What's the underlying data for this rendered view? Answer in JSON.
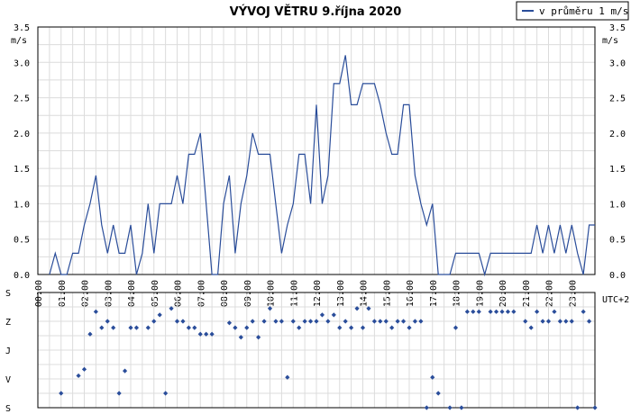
{
  "chart_data": [
    {
      "type": "line",
      "title": "VÝVOJ VĚTRU  9.října 2020",
      "ylabel": "m/s",
      "x_unit_label": "UTC+2",
      "ylim": [
        0,
        3.5
      ],
      "y_ticks": [
        "0.0",
        "0.5",
        "1.0",
        "1.5",
        "2.0",
        "2.5",
        "3.0",
        "3.5"
      ],
      "x_ticks": [
        "00:00",
        "01:00",
        "02:00",
        "03:00",
        "04:00",
        "05:00",
        "06:00",
        "07:00",
        "08:00",
        "09:00",
        "10:00",
        "11:00",
        "12:00",
        "13:00",
        "14:00",
        "15:00",
        "16:00",
        "17:00",
        "18:00",
        "19:00",
        "20:00",
        "21:00",
        "22:00",
        "23:00"
      ],
      "xlim_hours": [
        0,
        24
      ],
      "grid": true,
      "legend_position": "top-right",
      "series": [
        {
          "name": "v průměru 1 m/s",
          "color": "#2a4d9a",
          "x": [
            0.5,
            0.75,
            1.0,
            1.25,
            1.5,
            1.75,
            2.0,
            2.25,
            2.5,
            2.75,
            3.0,
            3.25,
            3.5,
            3.75,
            4.0,
            4.25,
            4.5,
            4.75,
            5.0,
            5.25,
            5.5,
            5.75,
            6.0,
            6.25,
            6.5,
            6.75,
            7.0,
            7.25,
            7.5,
            7.75,
            8.0,
            8.25,
            8.5,
            8.75,
            9.0,
            9.25,
            9.5,
            9.75,
            10.0,
            10.25,
            10.5,
            10.75,
            11.0,
            11.25,
            11.5,
            11.75,
            12.0,
            12.25,
            12.5,
            12.75,
            13.0,
            13.25,
            13.5,
            13.75,
            14.0,
            14.25,
            14.5,
            14.75,
            15.0,
            15.25,
            15.5,
            15.75,
            16.0,
            16.25,
            16.5,
            16.75,
            17.0,
            17.25,
            17.5,
            17.75,
            18.0,
            18.25,
            18.5,
            18.75,
            19.0,
            19.25,
            19.5,
            19.75,
            20.0,
            20.25,
            20.5,
            20.75,
            21.0,
            21.25,
            21.5,
            21.75,
            22.0,
            22.25,
            22.5,
            22.75,
            23.0,
            23.25,
            23.5,
            23.75,
            24.0
          ],
          "y": [
            0.0,
            0.3,
            0.0,
            0.0,
            0.3,
            0.3,
            0.7,
            1.0,
            1.4,
            0.7,
            0.3,
            0.7,
            0.3,
            0.3,
            0.7,
            0.0,
            0.3,
            1.0,
            0.3,
            1.0,
            1.0,
            1.0,
            1.4,
            1.0,
            1.7,
            1.7,
            2.0,
            1.0,
            0.0,
            0.0,
            1.0,
            1.4,
            0.3,
            1.0,
            1.4,
            2.0,
            1.7,
            1.7,
            1.7,
            1.0,
            0.3,
            0.7,
            1.0,
            1.7,
            1.7,
            1.0,
            2.4,
            1.0,
            1.4,
            2.7,
            2.7,
            3.1,
            2.4,
            2.4,
            2.7,
            2.7,
            2.7,
            2.4,
            2.0,
            1.7,
            1.7,
            2.4,
            2.4,
            1.4,
            1.0,
            0.7,
            1.0,
            0.0,
            0.0,
            0.0,
            0.3,
            0.3,
            0.3,
            0.3,
            0.3,
            0.0,
            0.3,
            0.3,
            0.3,
            0.3,
            0.3,
            0.3,
            0.3,
            0.3,
            0.7,
            0.3,
            0.7,
            0.3,
            0.7,
            0.3,
            0.7,
            0.3,
            0.0,
            0.7,
            0.7
          ]
        }
      ]
    },
    {
      "type": "scatter",
      "ylabel_categories": [
        "S",
        "V",
        "J",
        "Z",
        "S"
      ],
      "ylim": [
        0,
        360
      ],
      "y_note": "direction: S=0/360, V=90, J=180, Z=270",
      "xlim_hours": [
        0,
        24
      ],
      "grid": true,
      "series": [
        {
          "name": "",
          "color": "#2a4d9a",
          "x": [
            1.0,
            1.75,
            2.0,
            2.25,
            2.5,
            2.75,
            3.0,
            3.25,
            3.5,
            3.75,
            4.0,
            4.25,
            4.75,
            5.0,
            5.25,
            5.5,
            5.75,
            6.0,
            6.25,
            6.5,
            6.75,
            7.0,
            7.25,
            7.5,
            8.25,
            8.5,
            8.75,
            9.0,
            9.25,
            9.5,
            9.75,
            10.0,
            10.25,
            10.5,
            10.75,
            11.0,
            11.25,
            11.5,
            11.75,
            12.0,
            12.25,
            12.5,
            12.75,
            13.0,
            13.25,
            13.5,
            13.75,
            14.0,
            14.25,
            14.5,
            14.75,
            15.0,
            15.25,
            15.5,
            15.75,
            16.0,
            16.25,
            16.5,
            16.75,
            17.0,
            17.25,
            17.75,
            18.0,
            18.25,
            18.5,
            18.75,
            19.0,
            19.5,
            19.75,
            20.0,
            20.25,
            20.5,
            21.0,
            21.25,
            21.5,
            21.75,
            22.0,
            22.25,
            22.5,
            22.75,
            23.0,
            23.25,
            23.5,
            23.75,
            24.0
          ],
          "y": [
            45,
            100,
            120,
            230,
            300,
            250,
            270,
            250,
            45,
            115,
            250,
            250,
            250,
            270,
            290,
            45,
            310,
            270,
            270,
            250,
            250,
            230,
            230,
            230,
            265,
            250,
            220,
            250,
            270,
            220,
            270,
            310,
            270,
            270,
            95,
            270,
            250,
            270,
            270,
            270,
            290,
            270,
            290,
            250,
            270,
            250,
            310,
            250,
            310,
            270,
            270,
            270,
            250,
            270,
            270,
            250,
            270,
            270,
            0,
            95,
            45,
            0,
            250,
            0,
            300,
            300,
            300,
            300,
            300,
            300,
            300,
            300,
            270,
            250,
            300,
            270,
            270,
            300,
            270,
            270,
            270,
            0,
            300,
            270,
            0
          ]
        }
      ]
    }
  ]
}
